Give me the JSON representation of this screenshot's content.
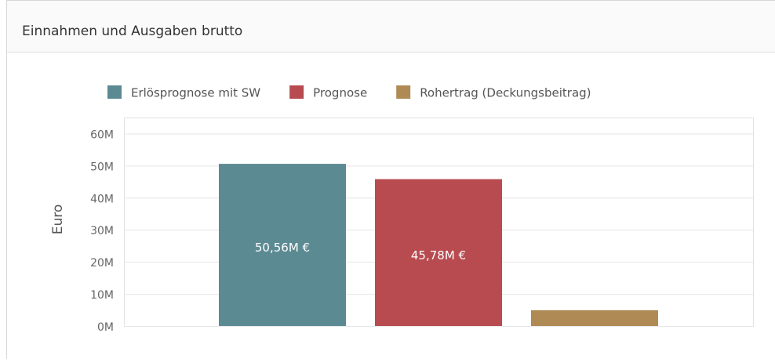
{
  "chart_data": {
    "type": "bar",
    "title": "Einnahmen und Ausgaben brutto",
    "y_label": "Euro",
    "categories": [
      null
    ],
    "series": [
      {
        "name": "Erlösprognose mit SW",
        "color": "#5c8a93",
        "values": [
          50560000
        ],
        "value_labels": [
          "50,56M €"
        ]
      },
      {
        "name": "Prognose",
        "color": "#b84b50",
        "values": [
          45780000
        ],
        "value_labels": [
          "45,78M €"
        ]
      },
      {
        "name": "Rohertrag (Deckungsbeitrag)",
        "color": "#b08a55",
        "values": [
          4900000
        ]
      }
    ],
    "ylim": [
      0,
      65000000
    ],
    "yticks": [
      {
        "value": 0,
        "label": "0M"
      },
      {
        "value": 10000000,
        "label": "10M"
      },
      {
        "value": 20000000,
        "label": "20M"
      },
      {
        "value": 30000000,
        "label": "30M"
      },
      {
        "value": 40000000,
        "label": "40M"
      },
      {
        "value": 50000000,
        "label": "50M"
      },
      {
        "value": 60000000,
        "label": "60M"
      }
    ],
    "grid": true,
    "legend": "top"
  }
}
